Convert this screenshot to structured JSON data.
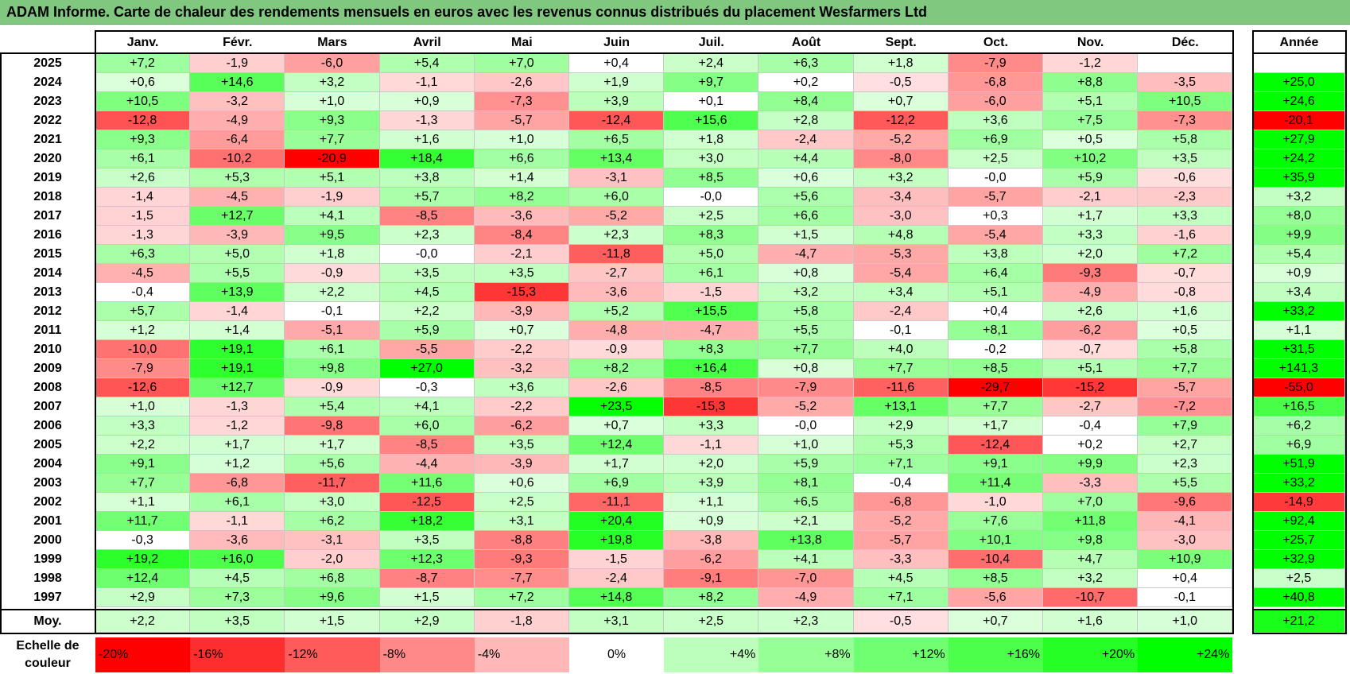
{
  "title": "ADAM Informe. Carte de chaleur des rendements mensuels en euros avec les revenus connus distribués du placement Wesfarmers Ltd",
  "chart_data": {
    "type": "heatmap",
    "columns": [
      "Janv.",
      "Févr.",
      "Mars",
      "Avril",
      "Mai",
      "Juin",
      "Juil.",
      "Août",
      "Sept.",
      "Oct.",
      "Nov.",
      "Déc."
    ],
    "annual_header": "Année",
    "rows": [
      {
        "year": "2025",
        "values": [
          "+7,2",
          "-1,9",
          "-6,0",
          "+5,4",
          "+7,0",
          "+0,4",
          "+2,4",
          "+6,3",
          "+1,8",
          "-7,9",
          "-1,2",
          ""
        ],
        "annual": ""
      },
      {
        "year": "2024",
        "values": [
          "+0,6",
          "+14,6",
          "+3,2",
          "-1,1",
          "-2,6",
          "+1,9",
          "+9,7",
          "+0,2",
          "-0,5",
          "-6,8",
          "+8,8",
          "-3,5"
        ],
        "annual": "+25,0"
      },
      {
        "year": "2023",
        "values": [
          "+10,5",
          "-3,2",
          "+1,0",
          "+0,9",
          "-7,3",
          "+3,9",
          "+0,1",
          "+8,4",
          "+0,7",
          "-6,0",
          "+5,1",
          "+10,5"
        ],
        "annual": "+24,6"
      },
      {
        "year": "2022",
        "values": [
          "-12,8",
          "-4,9",
          "+9,3",
          "-1,3",
          "-5,7",
          "-12,4",
          "+15,6",
          "+2,8",
          "-12,2",
          "+3,6",
          "+7,5",
          "-7,3"
        ],
        "annual": "-20,1"
      },
      {
        "year": "2021",
        "values": [
          "+9,3",
          "-6,4",
          "+7,7",
          "+1,6",
          "+1,0",
          "+6,5",
          "+1,8",
          "-2,4",
          "-5,2",
          "+6,9",
          "+0,5",
          "+5,8"
        ],
        "annual": "+27,9"
      },
      {
        "year": "2020",
        "values": [
          "+6,1",
          "-10,2",
          "-20,9",
          "+18,4",
          "+6,6",
          "+13,4",
          "+3,0",
          "+4,4",
          "-8,0",
          "+2,5",
          "+10,2",
          "+3,5"
        ],
        "annual": "+24,2"
      },
      {
        "year": "2019",
        "values": [
          "+2,6",
          "+5,3",
          "+5,1",
          "+3,8",
          "+1,4",
          "-3,1",
          "+8,5",
          "+0,6",
          "+3,2",
          "-0,0",
          "+5,9",
          "-0,6"
        ],
        "annual": "+35,9"
      },
      {
        "year": "2018",
        "values": [
          "-1,4",
          "-4,5",
          "-1,9",
          "+5,7",
          "+8,2",
          "+6,0",
          "-0,0",
          "+5,6",
          "-3,4",
          "-5,7",
          "-2,1",
          "-2,3"
        ],
        "annual": "+3,2"
      },
      {
        "year": "2017",
        "values": [
          "-1,5",
          "+12,7",
          "+4,1",
          "-8,5",
          "-3,6",
          "-5,2",
          "+2,5",
          "+6,6",
          "-3,0",
          "+0,3",
          "+1,7",
          "+3,3"
        ],
        "annual": "+8,0"
      },
      {
        "year": "2016",
        "values": [
          "-1,3",
          "-3,9",
          "+9,5",
          "+2,3",
          "-8,4",
          "+2,3",
          "+8,3",
          "+1,5",
          "+4,8",
          "-5,4",
          "+3,3",
          "-1,6"
        ],
        "annual": "+9,9"
      },
      {
        "year": "2015",
        "values": [
          "+6,3",
          "+5,0",
          "+1,8",
          "-0,0",
          "-2,1",
          "-11,8",
          "+5,0",
          "-4,7",
          "-5,3",
          "+3,8",
          "+2,0",
          "+7,2"
        ],
        "annual": "+5,4"
      },
      {
        "year": "2014",
        "values": [
          "-4,5",
          "+5,5",
          "-0,9",
          "+3,5",
          "+3,5",
          "-2,7",
          "+6,1",
          "+0,8",
          "-5,4",
          "+6,4",
          "-9,3",
          "-0,7"
        ],
        "annual": "+0,9"
      },
      {
        "year": "2013",
        "values": [
          "-0,4",
          "+13,9",
          "+2,2",
          "+4,5",
          "-15,3",
          "-3,6",
          "-1,5",
          "+3,2",
          "+3,4",
          "+5,1",
          "-4,9",
          "-0,8"
        ],
        "annual": "+3,4"
      },
      {
        "year": "2012",
        "values": [
          "+5,7",
          "-1,4",
          "-0,1",
          "+2,2",
          "-3,9",
          "+5,2",
          "+15,5",
          "+5,8",
          "-2,4",
          "+0,4",
          "+2,6",
          "+1,6"
        ],
        "annual": "+33,2"
      },
      {
        "year": "2011",
        "values": [
          "+1,2",
          "+1,4",
          "-5,1",
          "+5,9",
          "+0,7",
          "-4,8",
          "-4,7",
          "+5,5",
          "-0,1",
          "+8,1",
          "-6,2",
          "+0,5"
        ],
        "annual": "+1,1"
      },
      {
        "year": "2010",
        "values": [
          "-10,0",
          "+19,1",
          "+6,1",
          "-5,5",
          "-2,2",
          "-0,9",
          "+8,3",
          "+7,7",
          "+4,0",
          "-0,2",
          "-0,7",
          "+5,8"
        ],
        "annual": "+31,5"
      },
      {
        "year": "2009",
        "values": [
          "-7,9",
          "+19,1",
          "+9,8",
          "+27,0",
          "-3,2",
          "+8,2",
          "+16,4",
          "+0,8",
          "+7,7",
          "+8,5",
          "+5,1",
          "+7,7"
        ],
        "annual": "+141,3"
      },
      {
        "year": "2008",
        "values": [
          "-12,6",
          "+12,7",
          "-0,9",
          "-0,3",
          "+3,6",
          "-2,6",
          "-8,5",
          "-7,9",
          "-11,6",
          "-29,7",
          "-15,2",
          "-5,7"
        ],
        "annual": "-55,0"
      },
      {
        "year": "2007",
        "values": [
          "+1,0",
          "-1,3",
          "+5,4",
          "+4,1",
          "-2,2",
          "+23,5",
          "-15,3",
          "-5,2",
          "+13,1",
          "+7,7",
          "-2,7",
          "-7,2"
        ],
        "annual": "+16,5"
      },
      {
        "year": "2006",
        "values": [
          "+3,3",
          "-1,2",
          "-9,8",
          "+6,0",
          "-6,2",
          "+0,7",
          "+3,3",
          "-0,0",
          "+2,9",
          "+1,7",
          "-0,4",
          "+7,9"
        ],
        "annual": "+6,2"
      },
      {
        "year": "2005",
        "values": [
          "+2,2",
          "+1,7",
          "+1,7",
          "-8,5",
          "+3,5",
          "+12,4",
          "-1,1",
          "+1,0",
          "+5,3",
          "-12,4",
          "+0,2",
          "+2,7"
        ],
        "annual": "+6,9"
      },
      {
        "year": "2004",
        "values": [
          "+9,1",
          "+1,2",
          "+5,6",
          "-4,4",
          "-3,9",
          "+1,7",
          "+2,0",
          "+5,9",
          "+7,1",
          "+9,1",
          "+9,9",
          "+2,3"
        ],
        "annual": "+51,9"
      },
      {
        "year": "2003",
        "values": [
          "+7,7",
          "-6,8",
          "-11,7",
          "+11,6",
          "+0,6",
          "+6,9",
          "+3,9",
          "+8,1",
          "-0,4",
          "+11,4",
          "-3,3",
          "+5,5"
        ],
        "annual": "+33,2"
      },
      {
        "year": "2002",
        "values": [
          "+1,1",
          "+6,1",
          "+3,0",
          "-12,5",
          "+2,5",
          "-11,1",
          "+1,1",
          "+6,5",
          "-6,8",
          "-1,0",
          "+7,0",
          "-9,6"
        ],
        "annual": "-14,9"
      },
      {
        "year": "2001",
        "values": [
          "+11,7",
          "-1,1",
          "+6,2",
          "+18,2",
          "+3,1",
          "+20,4",
          "+0,9",
          "+2,1",
          "-5,2",
          "+7,6",
          "+11,8",
          "-4,1"
        ],
        "annual": "+92,4"
      },
      {
        "year": "2000",
        "values": [
          "-0,3",
          "-3,6",
          "-3,1",
          "+3,5",
          "-8,8",
          "+19,8",
          "-3,8",
          "+13,8",
          "-5,7",
          "+10,1",
          "+9,8",
          "-3,0"
        ],
        "annual": "+25,7"
      },
      {
        "year": "1999",
        "values": [
          "+19,2",
          "+16,0",
          "-2,0",
          "+12,3",
          "-9,3",
          "-1,5",
          "-6,2",
          "+4,1",
          "-3,3",
          "-10,4",
          "+4,7",
          "+10,9"
        ],
        "annual": "+32,9"
      },
      {
        "year": "1998",
        "values": [
          "+12,4",
          "+4,5",
          "+6,8",
          "-8,7",
          "-7,7",
          "-2,4",
          "-9,1",
          "-7,0",
          "+4,5",
          "+8,5",
          "+3,2",
          "+0,4"
        ],
        "annual": "+2,5"
      },
      {
        "year": "1997",
        "values": [
          "+2,9",
          "+7,3",
          "+9,6",
          "+1,5",
          "+7,2",
          "+14,8",
          "+8,2",
          "-4,9",
          "+7,1",
          "-5,6",
          "-10,7",
          "-0,1"
        ],
        "annual": "+40,8"
      }
    ],
    "average": {
      "label": "Moy.",
      "values": [
        "+2,2",
        "+3,5",
        "+1,5",
        "+2,9",
        "-1,8",
        "+3,1",
        "+2,5",
        "+2,3",
        "-0,5",
        "+0,7",
        "+1,6",
        "+1,0"
      ],
      "annual": "+21,2"
    },
    "color_scale": {
      "label": "Echelle de couleur",
      "steps": [
        "-20%",
        "-16%",
        "-12%",
        "-8%",
        "-4%",
        "0%",
        "+4%",
        "+8%",
        "+12%",
        "+16%",
        "+20%",
        "+24%"
      ],
      "values": [
        -20,
        -16,
        -12,
        -8,
        -4,
        0,
        4,
        8,
        12,
        16,
        20,
        24
      ]
    },
    "colors": {
      "negative": "#ff0000",
      "neutral": "#ffffff",
      "positive": "#00ff00"
    }
  }
}
